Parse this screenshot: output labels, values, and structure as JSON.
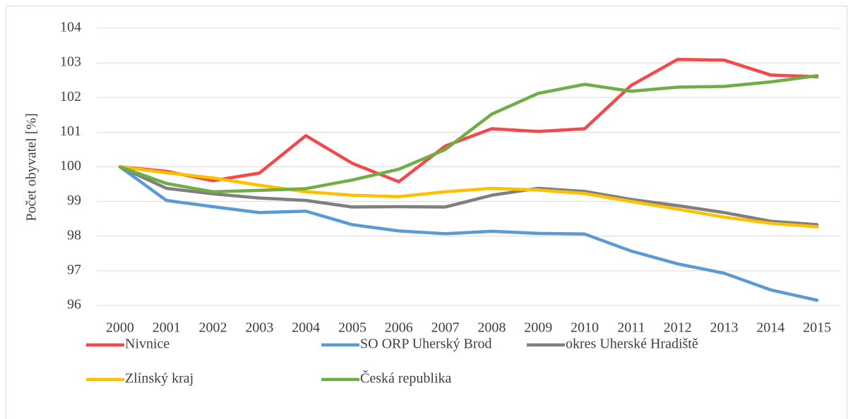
{
  "chart_data": {
    "type": "line",
    "ylabel": "Počet obyvatel [%]",
    "categories": [
      "2000",
      "2001",
      "2002",
      "2003",
      "2004",
      "2005",
      "2006",
      "2007",
      "2008",
      "2009",
      "2010",
      "2011",
      "2012",
      "2013",
      "2014",
      "2015"
    ],
    "series": [
      {
        "name": "Nivnice",
        "color": "#f4484a",
        "values": [
          100,
          99.87,
          99.6,
          99.82,
          100.9,
          100.1,
          99.57,
          100.6,
          101.1,
          101.02,
          101.1,
          102.35,
          103.1,
          103.08,
          102.65,
          102.6
        ]
      },
      {
        "name": "SO ORP Uherský Brod",
        "color": "#5b9bd5",
        "values": [
          100,
          99.03,
          98.85,
          98.68,
          98.72,
          98.33,
          98.15,
          98.07,
          98.14,
          98.08,
          98.06,
          97.57,
          97.2,
          96.93,
          96.45,
          96.15
        ]
      },
      {
        "name": "okres Uherské Hradiště",
        "color": "#7f7f7f",
        "values": [
          100,
          99.38,
          99.22,
          99.1,
          99.03,
          98.84,
          98.85,
          98.84,
          99.18,
          99.38,
          99.29,
          99.06,
          98.88,
          98.68,
          98.43,
          98.33
        ]
      },
      {
        "name": "Zlínský kraj",
        "color": "#ffc000",
        "values": [
          100,
          99.83,
          99.68,
          99.47,
          99.28,
          99.18,
          99.14,
          99.28,
          99.38,
          99.33,
          99.23,
          99.0,
          98.78,
          98.55,
          98.37,
          98.27
        ]
      },
      {
        "name": "Česká republika",
        "color": "#70ad47",
        "values": [
          100,
          99.52,
          99.28,
          99.32,
          99.37,
          99.62,
          99.93,
          100.5,
          101.52,
          102.12,
          102.38,
          102.18,
          102.3,
          102.32,
          102.45,
          102.63
        ]
      }
    ],
    "ylim": [
      96,
      104
    ],
    "yticks": [
      96,
      97,
      98,
      99,
      100,
      101,
      102,
      103,
      104
    ],
    "grid": true,
    "legend": "bottom"
  }
}
